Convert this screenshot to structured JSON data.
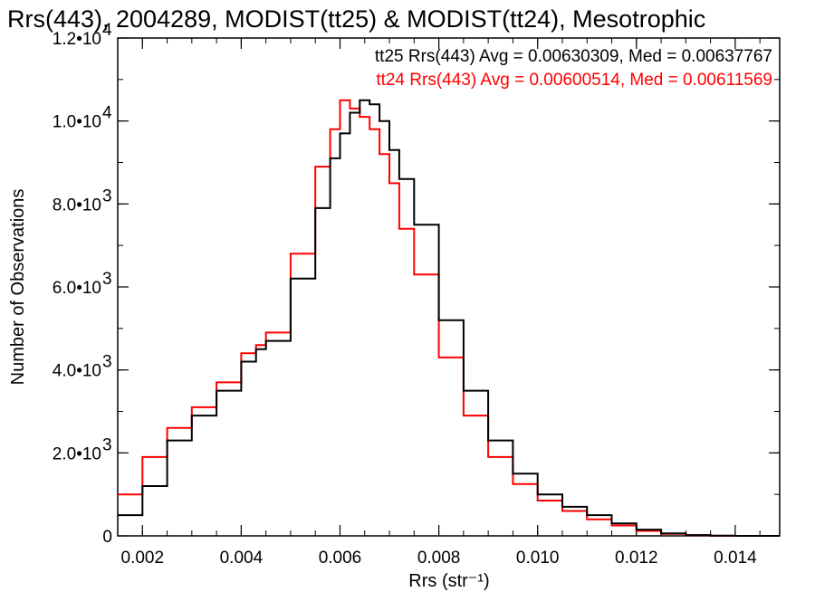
{
  "chart_data": {
    "type": "line",
    "title": "Rrs(443), 2004289, MODIST(tt25) & MODIST(tt24), Mesotrophic",
    "xlabel": "Rrs (str⁻¹)",
    "ylabel": "Number of Observations",
    "xlim": [
      0.0015,
      0.0149
    ],
    "ylim": [
      0,
      12000
    ],
    "x_ticks": [
      0.002,
      0.004,
      0.006,
      0.008,
      0.01,
      0.012,
      0.014
    ],
    "x_tick_labels": [
      "0.002",
      "0.004",
      "0.006",
      "0.008",
      "0.010",
      "0.012",
      "0.014"
    ],
    "y_ticks": [
      {
        "value": 0,
        "mantissa": "0",
        "exp": ""
      },
      {
        "value": 2000,
        "mantissa": "2.0•10",
        "exp": "3"
      },
      {
        "value": 4000,
        "mantissa": "4.0•10",
        "exp": "3"
      },
      {
        "value": 6000,
        "mantissa": "6.0•10",
        "exp": "3"
      },
      {
        "value": 8000,
        "mantissa": "8.0•10",
        "exp": "3"
      },
      {
        "value": 10000,
        "mantissa": "1.0•10",
        "exp": "4"
      },
      {
        "value": 12000,
        "mantissa": "1.2•10",
        "exp": "4"
      }
    ],
    "grid": false,
    "step": true,
    "legend_position": "top-right",
    "series": [
      {
        "name": "tt25 Rrs(443) Avg = 0.00630309, Med = 0.00637767",
        "color": "#000000",
        "x": [
          0.0015,
          0.002,
          0.0025,
          0.003,
          0.0035,
          0.004,
          0.0043,
          0.0045,
          0.005,
          0.0055,
          0.0058,
          0.006,
          0.0062,
          0.0064,
          0.0066,
          0.0068,
          0.007,
          0.0072,
          0.0075,
          0.008,
          0.0085,
          0.009,
          0.0095,
          0.01,
          0.0105,
          0.011,
          0.0115,
          0.012,
          0.0125,
          0.013,
          0.0135,
          0.014,
          0.0149
        ],
        "y": [
          500,
          1200,
          2300,
          2900,
          3500,
          4200,
          4500,
          4700,
          6200,
          7900,
          9100,
          9700,
          10200,
          10500,
          10400,
          10000,
          9300,
          8600,
          7500,
          5200,
          3500,
          2300,
          1500,
          1000,
          700,
          500,
          300,
          150,
          60,
          20,
          5,
          0,
          0
        ]
      },
      {
        "name": "tt24 Rrs(443) Avg = 0.00600514, Med = 0.00611569",
        "color": "#ff0000",
        "x": [
          0.0015,
          0.002,
          0.0025,
          0.003,
          0.0035,
          0.004,
          0.0043,
          0.0045,
          0.005,
          0.0055,
          0.0058,
          0.006,
          0.0062,
          0.0064,
          0.0066,
          0.0068,
          0.007,
          0.0072,
          0.0075,
          0.008,
          0.0085,
          0.009,
          0.0095,
          0.01,
          0.0105,
          0.011,
          0.0115,
          0.012,
          0.0125,
          0.013,
          0.0135,
          0.014,
          0.0149
        ],
        "y": [
          1000,
          1900,
          2600,
          3100,
          3700,
          4400,
          4600,
          4900,
          6800,
          8900,
          9800,
          10500,
          10300,
          10100,
          9800,
          9200,
          8500,
          7400,
          6300,
          4300,
          2900,
          1900,
          1250,
          850,
          600,
          400,
          250,
          120,
          50,
          15,
          3,
          0,
          0
        ]
      }
    ]
  }
}
